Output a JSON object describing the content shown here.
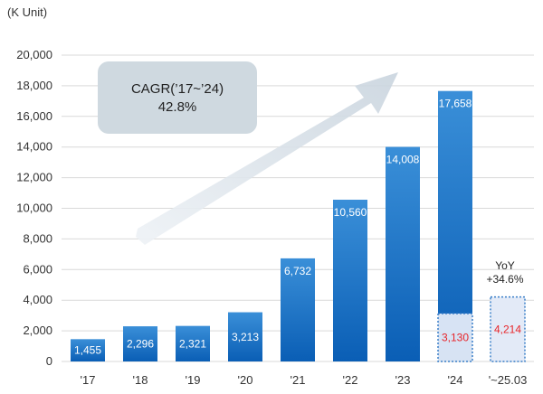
{
  "chart_data": {
    "type": "bar",
    "unit_label": "(K Unit)",
    "ylim": [
      0,
      20000
    ],
    "y_ticks": [
      "20,000",
      "18,000",
      "16,000",
      "14,000",
      "12,000",
      "10,000",
      "8,000",
      "6,000",
      "4,000",
      "2,000",
      "0"
    ],
    "y_tick_values": [
      20000,
      18000,
      16000,
      14000,
      12000,
      10000,
      8000,
      6000,
      4000,
      2000,
      0
    ],
    "grid": true,
    "categories": [
      "'17",
      "'18",
      "'19",
      "'20",
      "'21",
      "'22",
      "'23",
      "'24",
      "'~25.03"
    ],
    "values": [
      1455,
      2296,
      2321,
      3213,
      6732,
      10560,
      14008,
      17658,
      null
    ],
    "value_labels": [
      "1,455",
      "2,296",
      "2,321",
      "3,213",
      "6,732",
      "10,560",
      "14,008",
      "17,658",
      ""
    ],
    "q1_values": [
      null,
      null,
      null,
      null,
      null,
      null,
      null,
      3130,
      4214
    ],
    "q1_value_labels": [
      "",
      "",
      "",
      "",
      "",
      "",
      "",
      "3,130",
      "4,214"
    ],
    "annotations": {
      "cagr_line1": "CAGR(’17~’24)",
      "cagr_line2": "42.8%",
      "yoy_line1": "YoY",
      "yoy_line2": "+34.6%"
    }
  },
  "colors": {
    "bar_top": "#3a8fd8",
    "bar_bottom": "#0a5eb5",
    "bar_label": "#ffffff",
    "q1_label": "#e8252a",
    "q1_fill": "#e3eaf7",
    "q1_border": "#3a7fc8",
    "grid": "#d9d9d9",
    "arrow": "#d4dde6",
    "cagr_box": "#cfd9e0"
  }
}
